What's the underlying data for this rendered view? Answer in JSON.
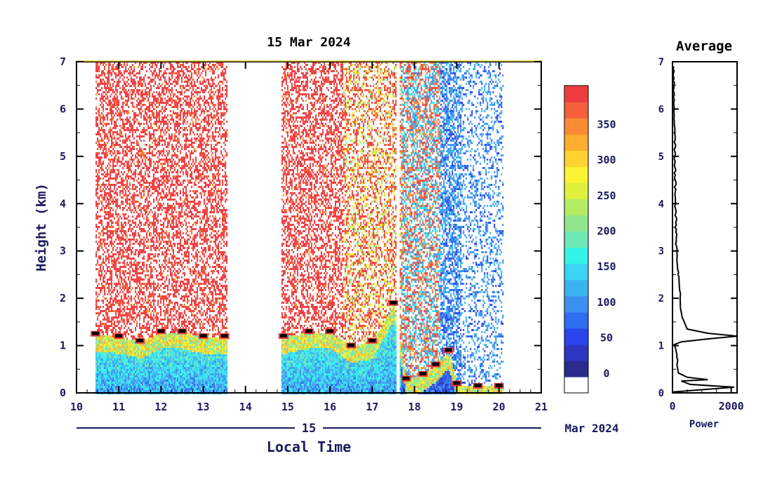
{
  "chart_data": [
    {
      "type": "heatmap",
      "title": "15 Mar 2024",
      "xlabel": "Local Time",
      "ylabel": "Height (km)",
      "day_label": "15",
      "date_label": "Mar 2024",
      "xlim": [
        10,
        21
      ],
      "ylim": [
        0,
        7
      ],
      "x_ticks": [
        "10",
        "11",
        "12",
        "13",
        "14",
        "15",
        "16",
        "17",
        "18",
        "19",
        "20",
        "21"
      ],
      "y_ticks": [
        "0",
        "1",
        "2",
        "3",
        "4",
        "5",
        "6",
        "7"
      ],
      "data_segments": [
        {
          "start": 10.45,
          "end": 13.55
        },
        {
          "start": 14.85,
          "end": 17.55
        },
        {
          "start": 17.65,
          "end": 20.1
        }
      ],
      "layer_top_km": [
        {
          "x": 10.45,
          "y": 1.25
        },
        {
          "x": 11.0,
          "y": 1.2
        },
        {
          "x": 11.5,
          "y": 1.1
        },
        {
          "x": 12.0,
          "y": 1.3
        },
        {
          "x": 12.5,
          "y": 1.3
        },
        {
          "x": 13.0,
          "y": 1.2
        },
        {
          "x": 13.5,
          "y": 1.2
        },
        {
          "x": 14.9,
          "y": 1.2
        },
        {
          "x": 15.5,
          "y": 1.3
        },
        {
          "x": 16.0,
          "y": 1.3
        },
        {
          "x": 16.5,
          "y": 1.0
        },
        {
          "x": 17.0,
          "y": 1.1
        },
        {
          "x": 17.5,
          "y": 1.9
        },
        {
          "x": 17.8,
          "y": 0.3
        },
        {
          "x": 18.2,
          "y": 0.4
        },
        {
          "x": 18.5,
          "y": 0.6
        },
        {
          "x": 18.8,
          "y": 0.9
        },
        {
          "x": 19.0,
          "y": 0.2
        },
        {
          "x": 19.5,
          "y": 0.15
        },
        {
          "x": 20.0,
          "y": 0.15
        }
      ],
      "colorbar": {
        "ticks": [
          "0",
          "50",
          "100",
          "150",
          "200",
          "250",
          "300",
          "350"
        ],
        "colors": [
          "#ffffff",
          "#2b2b8e",
          "#2e36c2",
          "#2a45ec",
          "#2f6df2",
          "#3d8ff0",
          "#39b3f0",
          "#3cd4f2",
          "#33f3ea",
          "#6de8b4",
          "#8fe68d",
          "#b3ec63",
          "#dff03c",
          "#fbf232",
          "#fed232",
          "#fdae30",
          "#fb8a34",
          "#f5603a",
          "#ef3c3f"
        ]
      }
    },
    {
      "type": "line",
      "title": "Average",
      "xlabel": "Power",
      "xlim": [
        0,
        2200
      ],
      "ylim": [
        0,
        7
      ],
      "x_ticks": [
        "0",
        "2000"
      ],
      "y_ticks": [
        "0",
        "1",
        "2",
        "3",
        "4",
        "5",
        "6",
        "7"
      ],
      "points": [
        {
          "x": 0,
          "y": 0.02
        },
        {
          "x": 2100,
          "y": 0.12
        },
        {
          "x": 600,
          "y": 0.18
        },
        {
          "x": 300,
          "y": 0.25
        },
        {
          "x": 1200,
          "y": 0.28
        },
        {
          "x": 500,
          "y": 0.33
        },
        {
          "x": 200,
          "y": 0.42
        },
        {
          "x": 150,
          "y": 0.6
        },
        {
          "x": 150,
          "y": 0.8
        },
        {
          "x": 100,
          "y": 0.95
        },
        {
          "x": 60,
          "y": 1.02
        },
        {
          "x": 300,
          "y": 1.08
        },
        {
          "x": 1200,
          "y": 1.14
        },
        {
          "x": 2200,
          "y": 1.2
        },
        {
          "x": 1200,
          "y": 1.26
        },
        {
          "x": 500,
          "y": 1.35
        },
        {
          "x": 400,
          "y": 1.5
        },
        {
          "x": 330,
          "y": 1.6
        },
        {
          "x": 270,
          "y": 1.8
        },
        {
          "x": 260,
          "y": 2.0
        },
        {
          "x": 240,
          "y": 2.2
        },
        {
          "x": 220,
          "y": 2.4
        },
        {
          "x": 180,
          "y": 2.6
        },
        {
          "x": 150,
          "y": 2.8
        },
        {
          "x": 130,
          "y": 3.2
        },
        {
          "x": 110,
          "y": 3.6
        },
        {
          "x": 100,
          "y": 4.0
        },
        {
          "x": 90,
          "y": 4.5
        },
        {
          "x": 80,
          "y": 5.0
        },
        {
          "x": 70,
          "y": 5.5
        },
        {
          "x": 60,
          "y": 6.0
        },
        {
          "x": 50,
          "y": 6.5
        },
        {
          "x": 40,
          "y": 6.9
        }
      ]
    }
  ]
}
